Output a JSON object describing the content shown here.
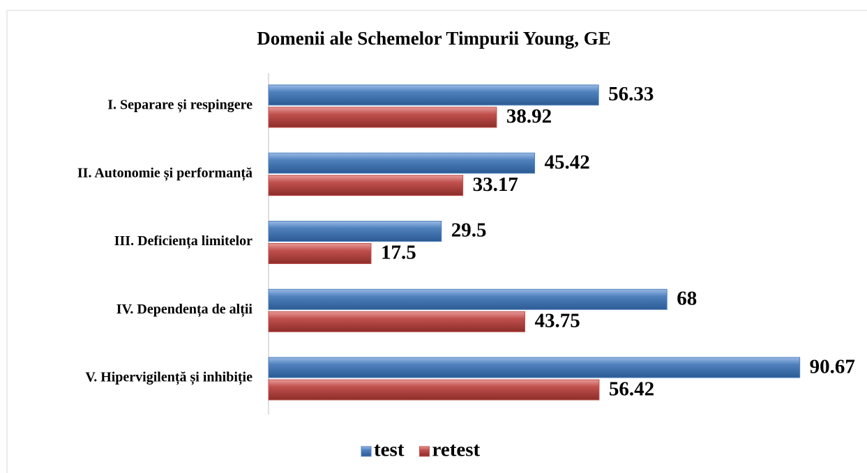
{
  "chart_data": {
    "type": "bar",
    "orientation": "horizontal",
    "title": "Domenii ale Schemelor Timpurii Young, GE",
    "categories": [
      "I. Separare și respingere",
      "II. Autonomie și performanță",
      "III. Deficiența limitelor",
      "IV. Dependența de alții",
      "V. Hipervigilență și inhibiție"
    ],
    "series": [
      {
        "name": "test",
        "color": "#4f81bd",
        "values": [
          56.33,
          45.42,
          29.5,
          68,
          90.67
        ]
      },
      {
        "name": "retest",
        "color": "#c0504d",
        "values": [
          38.92,
          33.17,
          17.5,
          43.75,
          56.42
        ]
      }
    ],
    "xlim": [
      0,
      100
    ],
    "legend": "bottom"
  }
}
